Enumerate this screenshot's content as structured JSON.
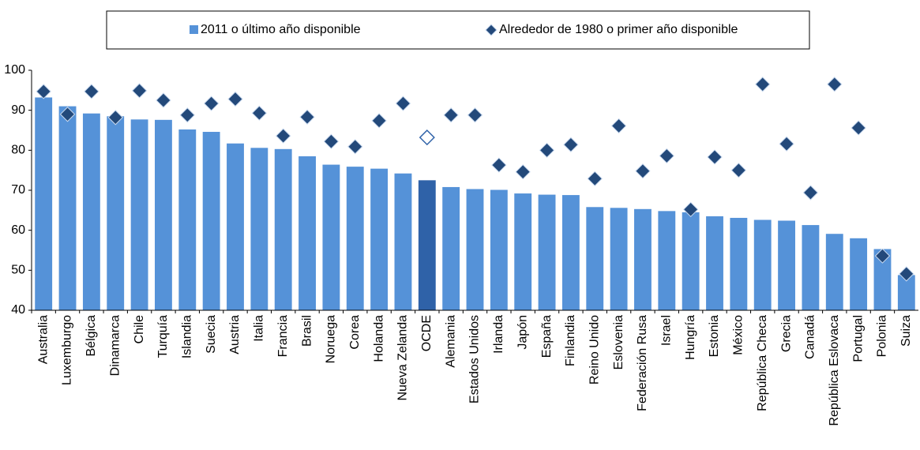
{
  "chart_data": {
    "type": "bar_marker",
    "categories": [
      "Australia",
      "Luxemburgo",
      "Bélgica",
      "Dinamarca",
      "Chile",
      "Turquía",
      "Islandia",
      "Suecia",
      "Austria",
      "Italia",
      "Francia",
      "Brasil",
      "Noruega",
      "Corea",
      "Holanda",
      "Nueva Zelanda",
      "OCDE",
      "Alemania",
      "Estados Unidos",
      "Irlanda",
      "Japón",
      "España",
      "Finlandia",
      "Reino Unido",
      "Eslovenia",
      "Federación Rusa",
      "Israel",
      "Hungría",
      "Estonia",
      "México",
      "República Checa",
      "Grecia",
      "Canadá",
      "República Eslovaca",
      "Portugal",
      "Polonia",
      "Suiza"
    ],
    "series": [
      {
        "name": "2011 o último año disponible",
        "color": "#5592d8",
        "highlight_color": "#2f62a8",
        "values": [
          93.2,
          91.0,
          89.2,
          88.5,
          87.7,
          87.6,
          85.2,
          84.6,
          81.7,
          80.6,
          80.3,
          78.5,
          76.4,
          75.9,
          75.4,
          74.2,
          72.5,
          70.8,
          70.3,
          70.1,
          69.2,
          68.9,
          68.8,
          65.8,
          65.6,
          65.3,
          64.8,
          64.5,
          63.5,
          63.1,
          62.6,
          62.4,
          61.3,
          59.1,
          58.0,
          55.3,
          48.8
        ]
      },
      {
        "name": "Alrededor de 1980 o primer año disponible",
        "color": "#23497a",
        "values": [
          94.7,
          89.0,
          94.7,
          88.2,
          94.9,
          92.5,
          88.8,
          91.7,
          92.8,
          89.3,
          83.6,
          88.3,
          82.2,
          80.9,
          87.4,
          91.7,
          83.2,
          88.8,
          88.8,
          76.3,
          74.6,
          80.0,
          81.4,
          72.9,
          86.1,
          74.8,
          78.6,
          65.2,
          78.3,
          75.0,
          96.5,
          81.6,
          69.4,
          96.5,
          85.6,
          53.6,
          49.1
        ]
      }
    ],
    "highlight": "OCDE",
    "ylim": [
      40,
      100
    ],
    "yticks": [
      40,
      50,
      60,
      70,
      80,
      90,
      100
    ],
    "grid": false
  }
}
